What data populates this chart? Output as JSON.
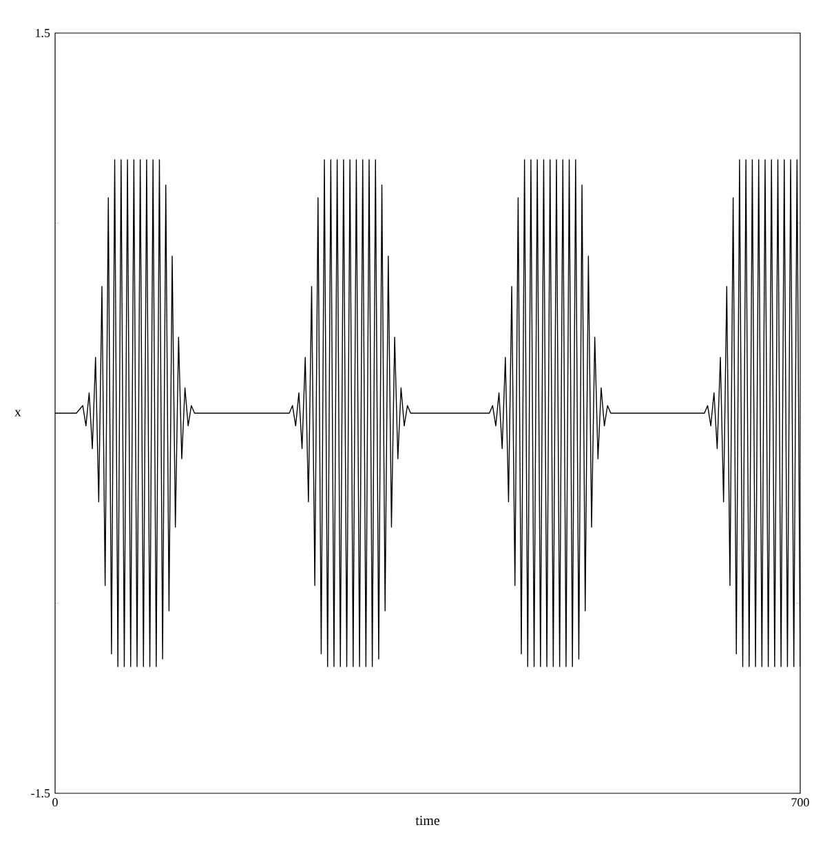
{
  "chart_data": {
    "type": "line",
    "xlabel": "time",
    "ylabel": "x",
    "xlim": [
      0,
      700
    ],
    "ylim": [
      -1.5,
      1.5
    ],
    "xticks": [
      0,
      700
    ],
    "yticks": [
      -1.5,
      {
        "value": -0.75,
        "label": null
      },
      {
        "value": 0.75,
        "label": null
      },
      1.5
    ],
    "grid": false,
    "marker": "none",
    "line_style": "solid",
    "series": [
      {
        "color": "#000000",
        "x": [
          0,
          20,
          26,
          29,
          32,
          35,
          38,
          41,
          44,
          47,
          50,
          53,
          56,
          59,
          62,
          65,
          68,
          71,
          74,
          77,
          80,
          83,
          86,
          89,
          92,
          95,
          98,
          101,
          104,
          107,
          110,
          113,
          116,
          119,
          122,
          125,
          128,
          131,
          220,
          223,
          226,
          229,
          232,
          235,
          238,
          241,
          244,
          247,
          250,
          253,
          256,
          259,
          262,
          265,
          268,
          271,
          274,
          277,
          280,
          283,
          286,
          289,
          292,
          295,
          298,
          301,
          304,
          307,
          310,
          313,
          316,
          319,
          322,
          325,
          328,
          331,
          334,
          408,
          411,
          414,
          417,
          420,
          423,
          426,
          429,
          432,
          435,
          438,
          441,
          444,
          447,
          450,
          453,
          456,
          459,
          462,
          465,
          468,
          471,
          474,
          477,
          480,
          483,
          486,
          489,
          492,
          495,
          498,
          501,
          504,
          507,
          510,
          513,
          516,
          519,
          522,
          610,
          613,
          616,
          619,
          622,
          625,
          628,
          631,
          634,
          637,
          640,
          643,
          646,
          649,
          652,
          655,
          658,
          661,
          664,
          667,
          670,
          673,
          676,
          679,
          682,
          685,
          688,
          691,
          694,
          697,
          700
        ],
        "values": [
          0,
          0,
          0.03,
          -0.05,
          0.08,
          -0.14,
          0.22,
          -0.35,
          0.5,
          -0.68,
          0.85,
          -0.95,
          1,
          -1,
          1,
          -1,
          1,
          -1,
          1,
          -1,
          1,
          -1,
          1,
          -1,
          1,
          -1,
          1,
          -0.97,
          0.9,
          -0.78,
          0.62,
          -0.45,
          0.3,
          -0.18,
          0.1,
          -0.05,
          0.03,
          0,
          0,
          0.03,
          -0.05,
          0.08,
          -0.14,
          0.22,
          -0.35,
          0.5,
          -0.68,
          0.85,
          -0.95,
          1,
          -1,
          1,
          -1,
          1,
          -1,
          1,
          -1,
          1,
          -1,
          1,
          -1,
          1,
          -1,
          1,
          -1,
          1,
          -0.97,
          0.9,
          -0.78,
          0.62,
          -0.45,
          0.3,
          -0.18,
          0.1,
          -0.05,
          0.03,
          0,
          0,
          0.03,
          -0.05,
          0.08,
          -0.14,
          0.22,
          -0.35,
          0.5,
          -0.68,
          0.85,
          -0.95,
          1,
          -1,
          1,
          -1,
          1,
          -1,
          1,
          -1,
          1,
          -1,
          1,
          -1,
          1,
          -1,
          1,
          -1,
          1,
          -0.97,
          0.9,
          -0.78,
          0.62,
          -0.45,
          0.3,
          -0.18,
          0.1,
          -0.05,
          0.03,
          0,
          0,
          0.03,
          -0.05,
          0.08,
          -0.14,
          0.22,
          -0.35,
          0.5,
          -0.68,
          0.85,
          -0.95,
          1,
          -1,
          1,
          -1,
          1,
          -1,
          1,
          -1,
          1,
          -1,
          1,
          -1,
          1,
          -1,
          1,
          -1,
          1,
          -1,
          1,
          -1
        ]
      }
    ]
  }
}
